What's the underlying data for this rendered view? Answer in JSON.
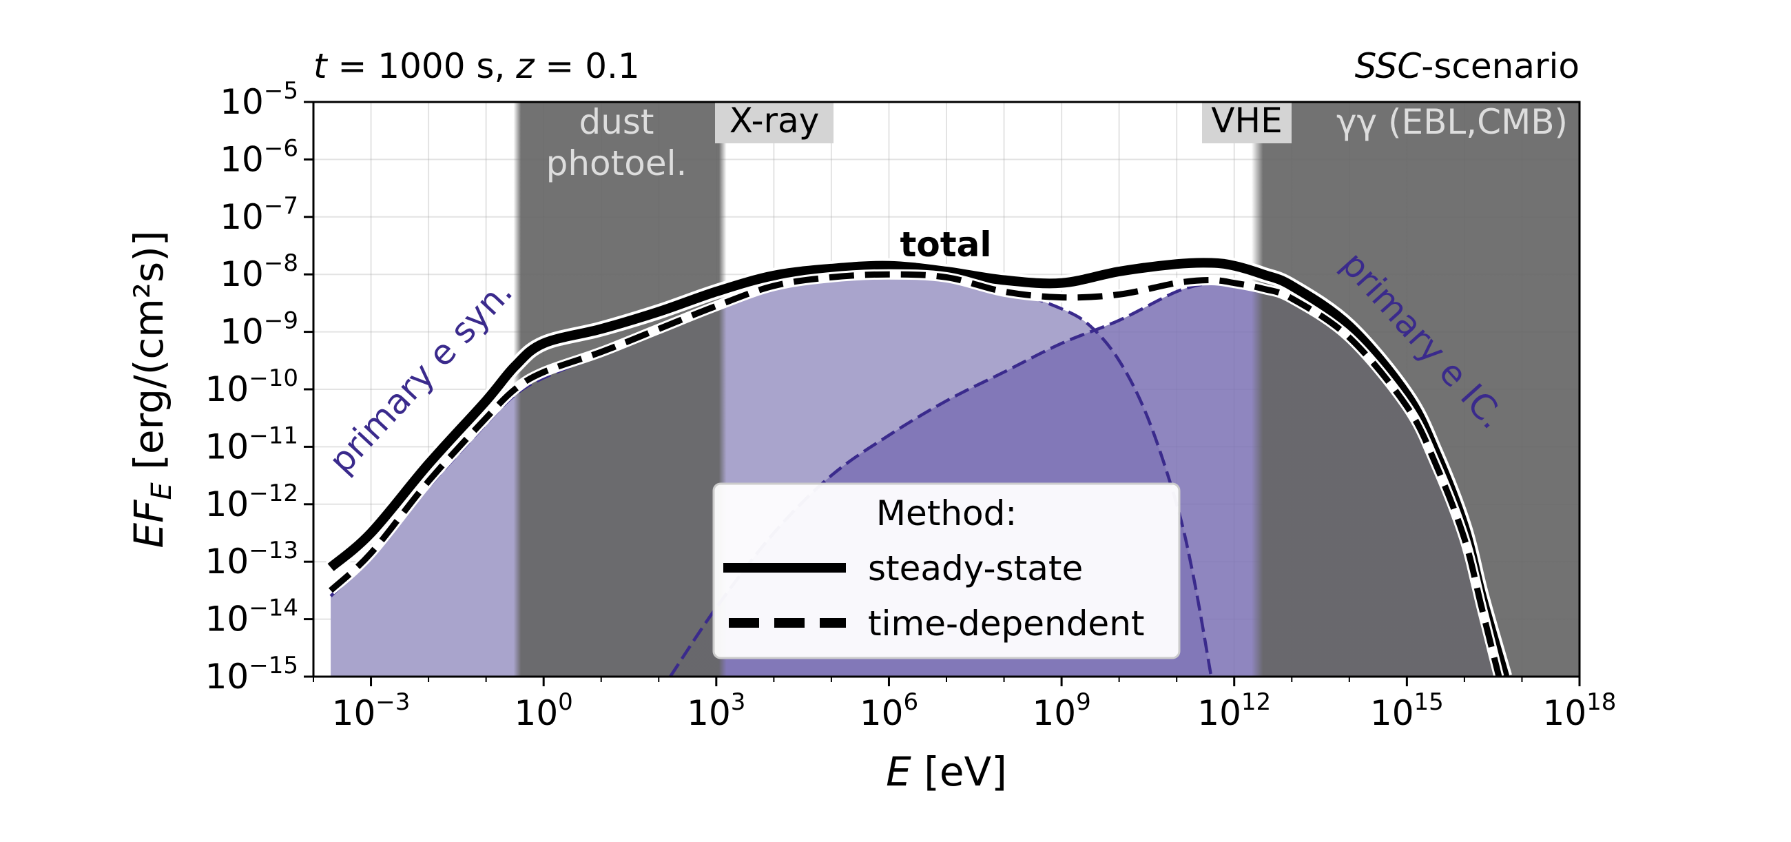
{
  "chart_data": {
    "type": "area",
    "top_left_annotation": {
      "t_symbol": "t",
      "t_value": " = 1000 s, ",
      "z_symbol": "z",
      "z_value": " = 0.1"
    },
    "top_right_annotation": {
      "italic": "SSC",
      "rest": "-scenario"
    },
    "xlabel": {
      "symbol": "E",
      "unit": " [eV]"
    },
    "ylabel": {
      "symbol": "EF",
      "subscript": "E",
      "unit": " [erg/(cm²s)]"
    },
    "x_scale": "log",
    "y_scale": "log",
    "xlim": [
      0.0001,
      1e+18
    ],
    "ylim": [
      1e-15,
      1e-05
    ],
    "x_ticks": [
      {
        "base": "10",
        "exp": "−3",
        "value": 0.001
      },
      {
        "base": "10",
        "exp": "0",
        "value": 1
      },
      {
        "base": "10",
        "exp": "3",
        "value": 1000
      },
      {
        "base": "10",
        "exp": "6",
        "value": 1000000.0
      },
      {
        "base": "10",
        "exp": "9",
        "value": 1000000000.0
      },
      {
        "base": "10",
        "exp": "12",
        "value": 1000000000000.0
      },
      {
        "base": "10",
        "exp": "15",
        "value": 1000000000000000.0
      },
      {
        "base": "10",
        "exp": "18",
        "value": 1e+18
      }
    ],
    "y_ticks": [
      {
        "base": "10",
        "exp": "−5",
        "value": 1e-05
      },
      {
        "base": "10",
        "exp": "−6",
        "value": 1e-06
      },
      {
        "base": "10",
        "exp": "−7",
        "value": 1e-07
      },
      {
        "base": "10",
        "exp": "−8",
        "value": 1e-08
      },
      {
        "base": "10",
        "exp": "−9",
        "value": 1e-09
      },
      {
        "base": "10",
        "exp": "−10",
        "value": 1e-10
      },
      {
        "base": "10",
        "exp": "−11",
        "value": 1e-11
      },
      {
        "base": "10",
        "exp": "−12",
        "value": 1e-12
      },
      {
        "base": "10",
        "exp": "−13",
        "value": 1e-13
      },
      {
        "base": "10",
        "exp": "−14",
        "value": 1e-14
      },
      {
        "base": "10",
        "exp": "−15",
        "value": 1e-15
      }
    ],
    "grid": true,
    "absorption_bands": [
      {
        "label_lines": [
          "dust",
          "photoel."
        ],
        "x_range": [
          0.3,
          1500
        ],
        "color": "#666666"
      },
      {
        "label": "γγ (EBL,CMB)",
        "x_range": [
          2000000000000.0,
          1e+18
        ],
        "color": "#666666"
      }
    ],
    "band_labels": [
      {
        "text": "X-ray",
        "x": 10000.0
      },
      {
        "text": "VHE",
        "x": 1000000000000.0
      }
    ],
    "series": [
      {
        "name": "primary e syn.",
        "style": "dashed",
        "color": "#3a2a8c",
        "fill": "#a9a4cc",
        "x_log10": [
          -3.7,
          -3,
          -2,
          -1,
          -0.5,
          0,
          1,
          2,
          3,
          4,
          5,
          6,
          7,
          8,
          9,
          9.5,
          10,
          10.5,
          11,
          11.3,
          11.6
        ],
        "y_log10": [
          -13.6,
          -12.9,
          -11.7,
          -10.6,
          -10.1,
          -9.8,
          -9.4,
          -9.0,
          -8.6,
          -8.25,
          -8.08,
          -8.02,
          -8.08,
          -8.25,
          -8.6,
          -8.9,
          -9.5,
          -10.5,
          -12.0,
          -13.3,
          -15.0
        ]
      },
      {
        "name": "primary e IC.",
        "style": "dashed",
        "color": "#3a2a8c",
        "fill": "#7b71b4",
        "x_log10": [
          2.2,
          3,
          4,
          5,
          6,
          7,
          8,
          9,
          10,
          11,
          11.6,
          12,
          12.5,
          13,
          14,
          15,
          15.5,
          16,
          16.3,
          16.6
        ],
        "y_log10": [
          -15.0,
          -13.8,
          -12.5,
          -11.5,
          -10.8,
          -10.2,
          -9.7,
          -9.2,
          -8.8,
          -8.3,
          -8.15,
          -8.15,
          -8.22,
          -8.4,
          -9.1,
          -10.3,
          -11.3,
          -12.6,
          -13.8,
          -15.0
        ]
      },
      {
        "name": "steady-state",
        "style": "solid",
        "color": "#000000",
        "x_log10": [
          -3.7,
          -3,
          -2,
          -1,
          -0.5,
          0,
          1,
          2,
          3,
          4,
          5,
          6,
          7,
          8,
          9,
          10,
          11,
          11.6,
          12,
          12.5,
          13,
          14,
          15,
          15.5,
          16,
          16.3,
          16.7
        ],
        "y_log10": [
          -13.1,
          -12.5,
          -11.3,
          -10.2,
          -9.6,
          -9.2,
          -8.95,
          -8.65,
          -8.3,
          -8.02,
          -7.9,
          -7.85,
          -7.95,
          -8.1,
          -8.15,
          -7.95,
          -7.82,
          -7.8,
          -7.85,
          -8.0,
          -8.2,
          -8.9,
          -10.1,
          -11.1,
          -12.4,
          -13.6,
          -15.0
        ]
      },
      {
        "name": "time-dependent",
        "style": "dashed",
        "color": "#000000",
        "x_log10": [
          -3.7,
          -3,
          -2,
          -1,
          -0.5,
          0,
          1,
          2,
          3,
          4,
          5,
          6,
          7,
          8,
          9,
          10,
          11,
          11.6,
          12,
          12.5,
          13,
          14,
          15,
          15.5,
          16,
          16.3,
          16.6
        ],
        "y_log10": [
          -13.5,
          -12.85,
          -11.6,
          -10.5,
          -10.0,
          -9.7,
          -9.35,
          -8.95,
          -8.55,
          -8.2,
          -8.05,
          -8.0,
          -8.05,
          -8.3,
          -8.4,
          -8.35,
          -8.15,
          -8.1,
          -8.15,
          -8.25,
          -8.42,
          -9.1,
          -10.3,
          -11.3,
          -12.6,
          -13.8,
          -15.0
        ]
      }
    ],
    "annotations": [
      {
        "text": "total",
        "bold": true
      },
      {
        "text": "primary e syn.",
        "color": "#3a2a8c"
      },
      {
        "text": "primary e IC.",
        "color": "#3a2a8c"
      }
    ],
    "legend": {
      "placement": "lower-center",
      "title": "Method:",
      "entries": [
        {
          "label": "steady-state",
          "style": "solid"
        },
        {
          "label": "time-dependent",
          "style": "dashed"
        }
      ]
    }
  }
}
